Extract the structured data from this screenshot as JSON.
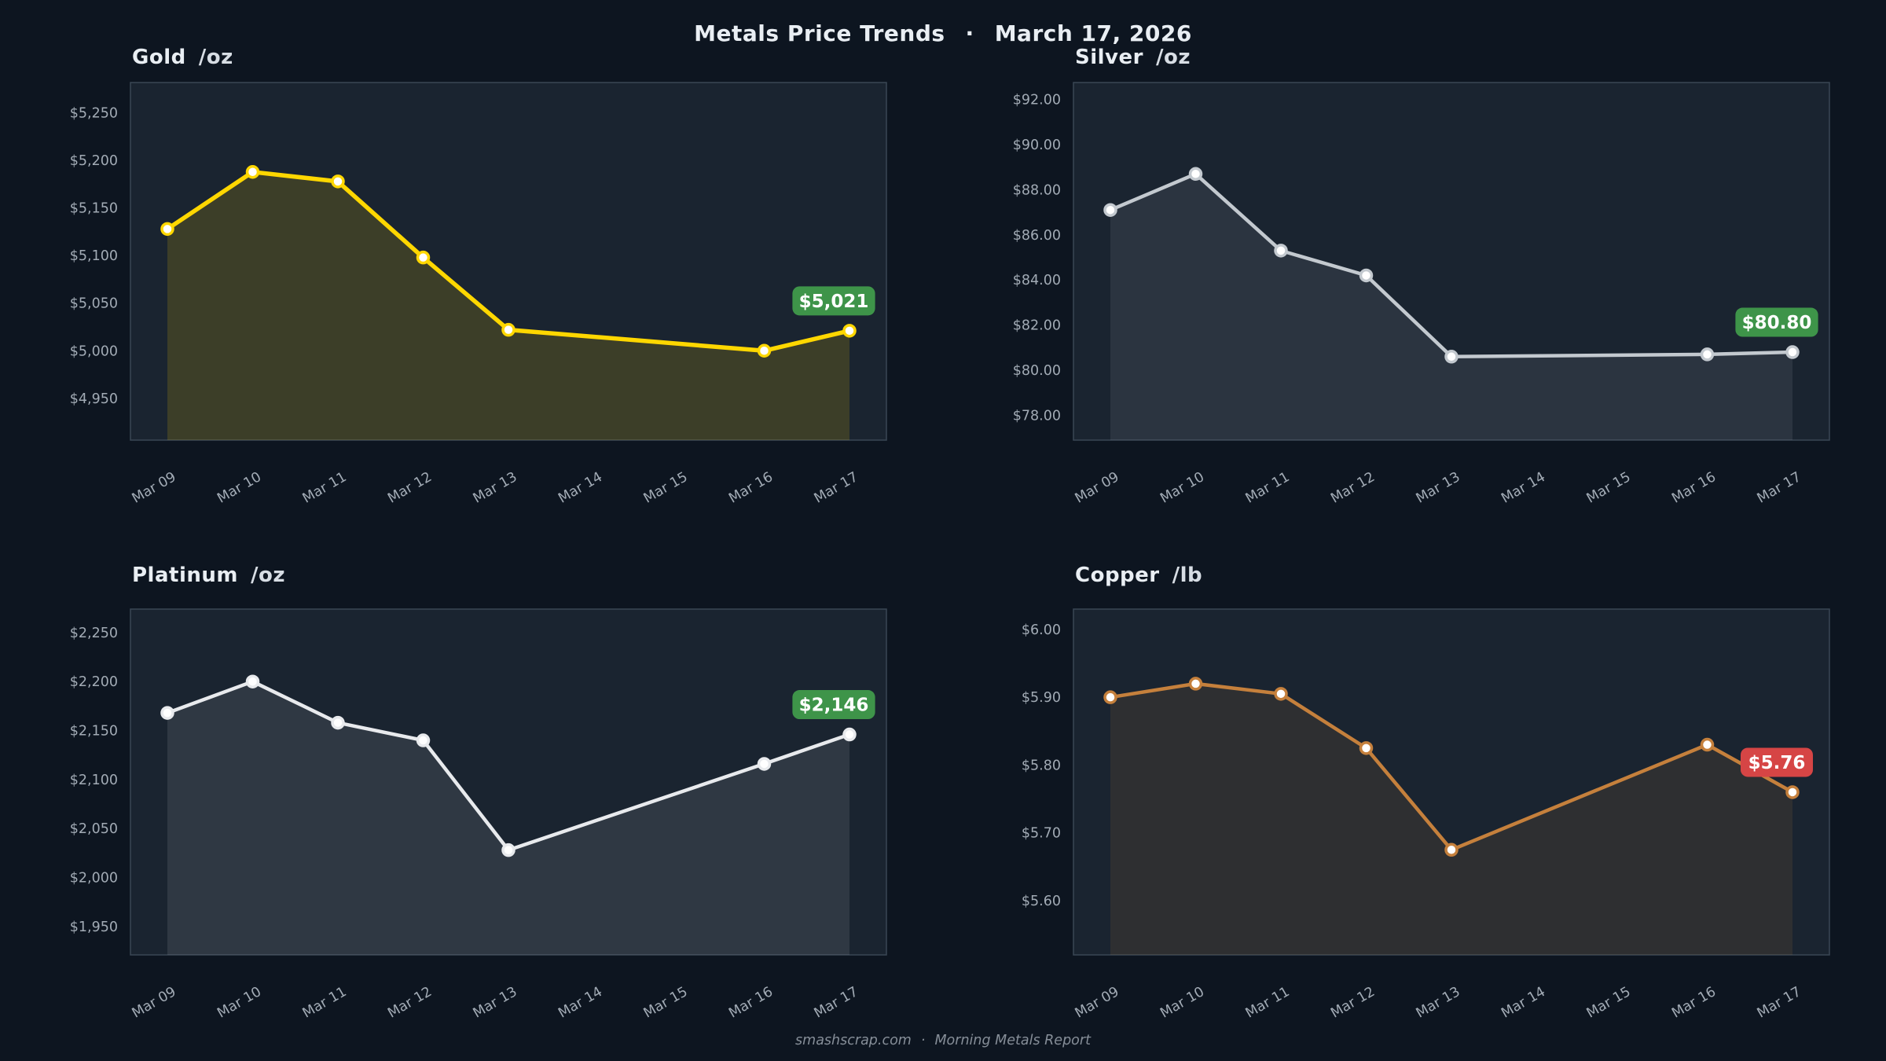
{
  "header": {
    "title": "Metals Price Trends",
    "separator": "·",
    "date": "March 17, 2026"
  },
  "footer": {
    "site": "smashscrap.com",
    "separator": "·",
    "report": "Morning Metals Report"
  },
  "colors": {
    "page_background": "#0d1520",
    "panel_background": "#1a2430",
    "panel_border": "#3a4654",
    "tick_label": "#a2abb5",
    "badge_up_green": "#3e9449",
    "badge_down_red": "#d64545",
    "gold_line": "#ffd700",
    "silver_line": "#c3c9cf",
    "platinum_line": "#e8eaed",
    "copper_line": "#c5803c"
  },
  "chart_data": [
    {
      "type": "line",
      "name": "Gold",
      "unit": "/oz",
      "x": [
        "Mar 09",
        "Mar 10",
        "Mar 11",
        "Mar 12",
        "Mar 13",
        "Mar 14",
        "Mar 15",
        "Mar 16",
        "Mar 17"
      ],
      "values": [
        5128,
        5188,
        5178,
        5098,
        5022,
        null,
        null,
        5000,
        5021
      ],
      "ylim": [
        4906,
        5282
      ],
      "yticks": [
        {
          "value": 5250,
          "label": "$5,250"
        },
        {
          "value": 5200,
          "label": "$5,200"
        },
        {
          "value": 5150,
          "label": "$5,150"
        },
        {
          "value": 5100,
          "label": "$5,100"
        },
        {
          "value": 5050,
          "label": "$5,050"
        },
        {
          "value": 5000,
          "label": "$5,000"
        },
        {
          "value": 4950,
          "label": "$4,950"
        }
      ],
      "line_color": "#ffd700",
      "fill_opacity": 0.15,
      "line_width": 5.5,
      "grid": false,
      "legend": "none",
      "last_badge": {
        "text": "$5,021",
        "bg": "#3e9449",
        "fg": "#ffffff"
      }
    },
    {
      "type": "line",
      "name": "Silver",
      "unit": "/oz",
      "x": [
        "Mar 09",
        "Mar 10",
        "Mar 11",
        "Mar 12",
        "Mar 13",
        "Mar 14",
        "Mar 15",
        "Mar 16",
        "Mar 17"
      ],
      "values": [
        87.1,
        88.7,
        85.3,
        84.2,
        80.6,
        null,
        null,
        80.7,
        80.8
      ],
      "ylim": [
        76.9,
        92.75
      ],
      "yticks": [
        {
          "value": 92,
          "label": "$92.00"
        },
        {
          "value": 90,
          "label": "$90.00"
        },
        {
          "value": 88,
          "label": "$88.00"
        },
        {
          "value": 86,
          "label": "$86.00"
        },
        {
          "value": 84,
          "label": "$84.00"
        },
        {
          "value": 82,
          "label": "$82.00"
        },
        {
          "value": 80,
          "label": "$80.00"
        },
        {
          "value": 78,
          "label": "$78.00"
        }
      ],
      "line_color": "#c3c9cf",
      "fill_opacity": 0.1,
      "line_width": 4.5,
      "grid": false,
      "legend": "none",
      "last_badge": {
        "text": "$80.80",
        "bg": "#3e9449",
        "fg": "#ffffff"
      }
    },
    {
      "type": "line",
      "name": "Platinum",
      "unit": "/oz",
      "x": [
        "Mar 09",
        "Mar 10",
        "Mar 11",
        "Mar 12",
        "Mar 13",
        "Mar 14",
        "Mar 15",
        "Mar 16",
        "Mar 17"
      ],
      "values": [
        2168,
        2200,
        2158,
        2140,
        2028,
        null,
        null,
        2116,
        2146
      ],
      "ylim": [
        1921,
        2274
      ],
      "yticks": [
        {
          "value": 2250,
          "label": "$2,250"
        },
        {
          "value": 2200,
          "label": "$2,200"
        },
        {
          "value": 2150,
          "label": "$2,150"
        },
        {
          "value": 2100,
          "label": "$2,100"
        },
        {
          "value": 2050,
          "label": "$2,050"
        },
        {
          "value": 2000,
          "label": "$2,000"
        },
        {
          "value": 1950,
          "label": "$1,950"
        }
      ],
      "line_color": "#e8eaed",
      "fill_opacity": 0.1,
      "line_width": 4.5,
      "grid": false,
      "legend": "none",
      "last_badge": {
        "text": "$2,146",
        "bg": "#3e9449",
        "fg": "#ffffff"
      }
    },
    {
      "type": "line",
      "name": "Copper",
      "unit": "/lb",
      "x": [
        "Mar 09",
        "Mar 10",
        "Mar 11",
        "Mar 12",
        "Mar 13",
        "Mar 14",
        "Mar 15",
        "Mar 16",
        "Mar 17"
      ],
      "values": [
        5.9,
        5.92,
        5.905,
        5.825,
        5.675,
        null,
        null,
        5.83,
        5.76
      ],
      "ylim": [
        5.52,
        6.03
      ],
      "yticks": [
        {
          "value": 6.0,
          "label": "$6.00"
        },
        {
          "value": 5.9,
          "label": "$5.90"
        },
        {
          "value": 5.8,
          "label": "$5.80"
        },
        {
          "value": 5.7,
          "label": "$5.70"
        },
        {
          "value": 5.6,
          "label": "$5.60"
        }
      ],
      "line_color": "#c5803c",
      "fill_opacity": 0.12,
      "line_width": 4.5,
      "grid": false,
      "legend": "none",
      "last_badge": {
        "text": "$5.76",
        "bg": "#d64545",
        "fg": "#ffffff"
      }
    }
  ]
}
